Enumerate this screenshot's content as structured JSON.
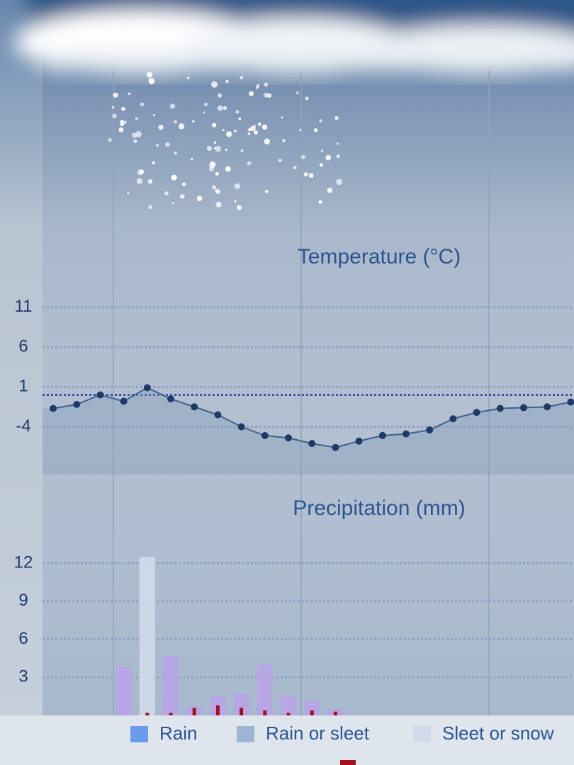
{
  "chart_data": [
    {
      "type": "line",
      "title": "Temperature (°C)",
      "categories": [
        null,
        null,
        null,
        null,
        null,
        null,
        null,
        null,
        null,
        null,
        null,
        null,
        null,
        null,
        null,
        null,
        null,
        null,
        null,
        null,
        null,
        null,
        null
      ],
      "values": [
        -1.7,
        -1.2,
        0,
        -0.8,
        0.9,
        -0.5,
        -1.5,
        -2.5,
        -4,
        -5.1,
        -5.4,
        -6.1,
        -6.6,
        -5.8,
        -5.1,
        -4.9,
        -4.4,
        -3,
        -2.2,
        -1.7,
        -1.6,
        -1.5,
        -0.9
      ],
      "color": "#1f3a66",
      "zero_line": 0,
      "ylim": [
        -10,
        14
      ],
      "yticks": [
        11,
        6,
        1,
        -4
      ],
      "grid": true
    },
    {
      "type": "bar",
      "title": "Precipitation (mm)",
      "categories": [
        null,
        null,
        null,
        null,
        null,
        null,
        null,
        null,
        null,
        null,
        null,
        null,
        null,
        null,
        null,
        null,
        null,
        null,
        null,
        null,
        null,
        null,
        null
      ],
      "series": [
        {
          "name": "Rain",
          "color": "#6b9bef",
          "values": [
            null,
            null,
            null,
            null,
            null,
            null,
            null,
            null,
            null,
            null,
            null,
            null,
            null,
            null,
            null,
            null,
            null,
            null,
            null,
            null,
            null,
            null,
            null
          ]
        },
        {
          "name": "Rain or sleet",
          "color": "#9db5d4",
          "bar_color": "#b6a6e6",
          "values": [
            null,
            null,
            null,
            3.8,
            null,
            4.7,
            0.7,
            1.5,
            1.7,
            4.0,
            1.5,
            1.2,
            0.5,
            null,
            null,
            null,
            null,
            null,
            null,
            null,
            null,
            null,
            null
          ]
        },
        {
          "name": "Sleet or snow",
          "color": "#d0daea",
          "values": [
            null,
            null,
            null,
            null,
            12.5,
            null,
            null,
            null,
            null,
            null,
            null,
            null,
            null,
            null,
            null,
            null,
            null,
            null,
            null,
            null,
            null,
            null,
            null
          ]
        },
        {
          "color": "#a3121c",
          "values": [
            null,
            null,
            null,
            null,
            0.2,
            0.2,
            0.6,
            0.8,
            0.6,
            0.4,
            0.2,
            0.4,
            0.3,
            null,
            null,
            null,
            null,
            null,
            null,
            null,
            null,
            null,
            null
          ]
        }
      ],
      "ylim": [
        0,
        13
      ],
      "yticks": [
        12,
        9,
        6,
        3
      ],
      "grid": true
    }
  ]
}
